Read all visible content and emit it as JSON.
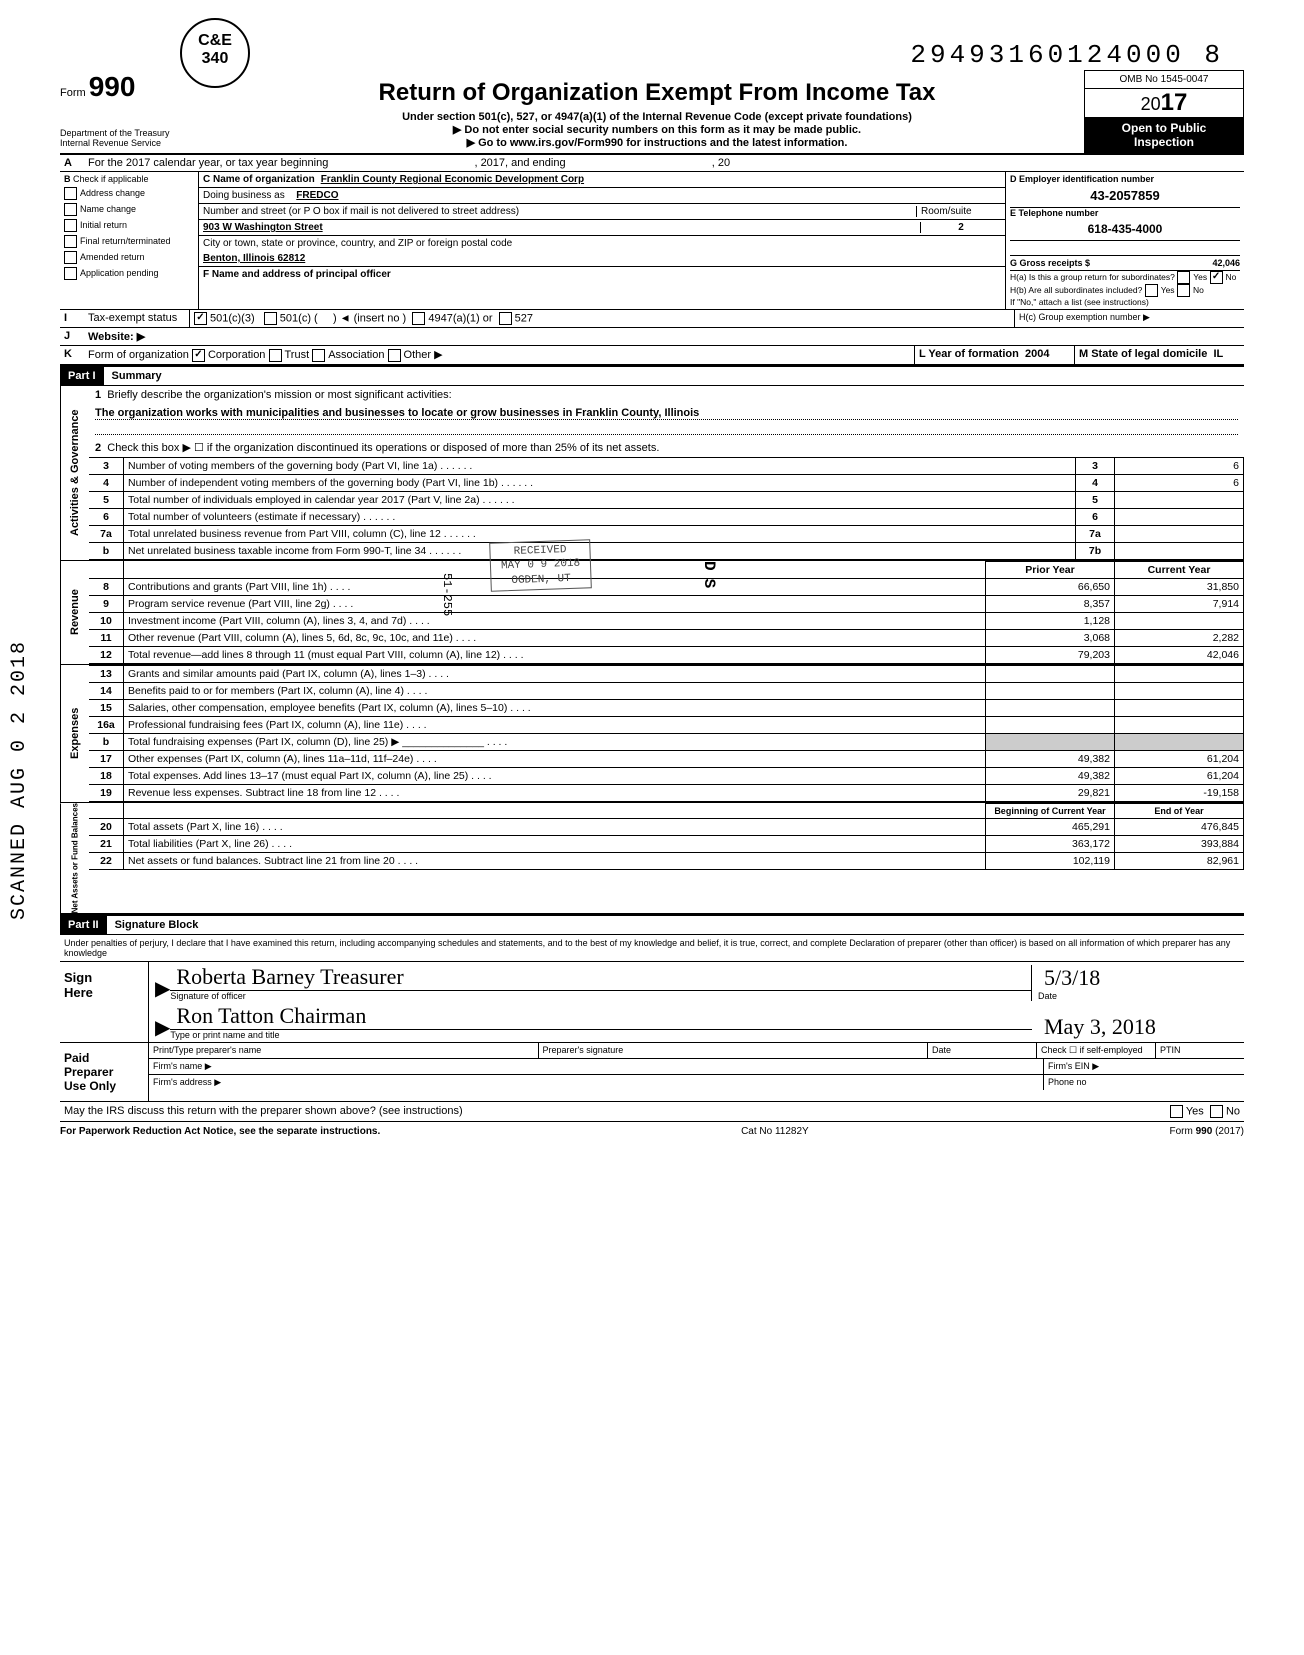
{
  "stamp": {
    "line1": "C&E",
    "line2": "340"
  },
  "dln": "29493160124000  8",
  "formNo": "990",
  "formWord": "Form",
  "title": "Return of Organization Exempt From Income Tax",
  "subtitle": "Under section 501(c), 527, or 4947(a)(1) of the Internal Revenue Code (except private foundations)",
  "warn1": "▶ Do not enter social security numbers on this form as it may be made public.",
  "warn2": "▶ Go to www.irs.gov/Form990 for instructions and the latest information.",
  "dept1": "Department of the Treasury",
  "dept2": "Internal Revenue Service",
  "omb": "OMB No  1545-0047",
  "year_prefix": "20",
  "year_big": "17",
  "open1": "Open to Public",
  "open2": "Inspection",
  "lineA": "For the 2017 calendar year, or tax year beginning",
  "lineA2": ", 2017, and ending",
  "lineA3": ", 20",
  "B": {
    "header": "Check if applicable",
    "items": [
      "Address change",
      "Name change",
      "Initial return",
      "Final return/terminated",
      "Amended return",
      "Application pending"
    ]
  },
  "C": {
    "name_lbl": "C Name of organization",
    "name_val": "Franklin County Regional Economic Development Corp",
    "dba_lbl": "Doing business as",
    "dba_val": "FREDCO",
    "street_lbl": "Number and street (or P O  box if mail is not delivered to street address)",
    "room_lbl": "Room/suite",
    "street_val": "903 W Washington Street",
    "room_val": "2",
    "city_lbl": "City or town, state or province, country, and ZIP or foreign postal code",
    "city_val": "Benton, Illinois 62812",
    "F_lbl": "F Name and address of principal officer"
  },
  "D": {
    "lbl": "D Employer identification number",
    "val": "43-2057859"
  },
  "E": {
    "lbl": "E Telephone number",
    "val": "618-435-4000"
  },
  "G": {
    "lbl": "G Gross receipts $",
    "val": "42,046"
  },
  "H": {
    "a": "H(a) Is this a group return for subordinates?",
    "b": "H(b) Are all subordinates included?",
    "yes": "Yes",
    "no": "No",
    "note": "If \"No,\" attach a list  (see instructions)",
    "c": "H(c) Group exemption number ▶"
  },
  "I": {
    "lbl": "Tax-exempt status",
    "opts": [
      "501(c)(3)",
      "501(c) (",
      "◄ (insert no )",
      "4947(a)(1) or",
      "527"
    ]
  },
  "J": {
    "lbl": "Website: ▶"
  },
  "K": {
    "lbl": "Form of organization",
    "opts": [
      "Corporation",
      "Trust",
      "Association",
      "Other ▶"
    ],
    "L": "L Year of formation",
    "L_val": "2004",
    "M": "M State of legal domicile",
    "M_val": "IL"
  },
  "part1": {
    "tag": "Part I",
    "title": "Summary"
  },
  "summary": {
    "q1": "Briefly describe the organization's mission or most significant activities:",
    "q1_val": "The organization works with municipalities and businesses to locate or grow businesses in Franklin County, Illinois",
    "q2": "Check this box ▶ ☐ if the organization discontinued its operations or disposed of more than 25% of its net assets.",
    "rows_top": [
      {
        "n": "3",
        "desc": "Number of voting members of the governing body (Part VI, line 1a)",
        "box": "3",
        "val": "6"
      },
      {
        "n": "4",
        "desc": "Number of independent voting members of the governing body (Part VI, line 1b)",
        "box": "4",
        "val": "6"
      },
      {
        "n": "5",
        "desc": "Total number of individuals employed in calendar year 2017 (Part V, line 2a)",
        "box": "5",
        "val": ""
      },
      {
        "n": "6",
        "desc": "Total number of volunteers (estimate if necessary)",
        "box": "6",
        "val": ""
      },
      {
        "n": "7a",
        "desc": "Total unrelated business revenue from Part VIII, column (C), line 12",
        "box": "7a",
        "val": ""
      },
      {
        "n": "b",
        "desc": "Net unrelated business taxable income from Form 990-T, line 34",
        "box": "7b",
        "val": ""
      }
    ],
    "col_prior": "Prior Year",
    "col_current": "Current Year",
    "revenue_rows": [
      {
        "n": "8",
        "desc": "Contributions and grants (Part VIII, line 1h)",
        "prior": "66,650",
        "curr": "31,850"
      },
      {
        "n": "9",
        "desc": "Program service revenue (Part VIII, line 2g)",
        "prior": "8,357",
        "curr": "7,914"
      },
      {
        "n": "10",
        "desc": "Investment income (Part VIII, column (A), lines 3, 4, and 7d)",
        "prior": "1,128",
        "curr": ""
      },
      {
        "n": "11",
        "desc": "Other revenue (Part VIII, column (A), lines 5, 6d, 8c, 9c, 10c, and 11e)",
        "prior": "3,068",
        "curr": "2,282"
      },
      {
        "n": "12",
        "desc": "Total revenue—add lines 8 through 11 (must equal Part VIII, column (A), line 12)",
        "prior": "79,203",
        "curr": "42,046"
      }
    ],
    "expense_rows": [
      {
        "n": "13",
        "desc": "Grants and similar amounts paid (Part IX, column (A), lines 1–3)",
        "prior": "",
        "curr": ""
      },
      {
        "n": "14",
        "desc": "Benefits paid to or for members (Part IX, column (A), line 4)",
        "prior": "",
        "curr": ""
      },
      {
        "n": "15",
        "desc": "Salaries, other compensation, employee benefits (Part IX, column (A), lines 5–10)",
        "prior": "",
        "curr": ""
      },
      {
        "n": "16a",
        "desc": "Professional fundraising fees (Part IX, column (A), line 11e)",
        "prior": "",
        "curr": ""
      },
      {
        "n": "b",
        "desc": "Total fundraising expenses (Part IX, column (D), line 25) ▶ ______________",
        "prior": "shade",
        "curr": "shade"
      },
      {
        "n": "17",
        "desc": "Other expenses (Part IX, column (A), lines 11a–11d, 11f–24e)",
        "prior": "49,382",
        "curr": "61,204"
      },
      {
        "n": "18",
        "desc": "Total expenses. Add lines 13–17 (must equal Part IX, column (A), line 25)",
        "prior": "49,382",
        "curr": "61,204"
      },
      {
        "n": "19",
        "desc": "Revenue less expenses. Subtract line 18 from line 12",
        "prior": "29,821",
        "curr": "-19,158"
      }
    ],
    "col_begin": "Beginning of Current Year",
    "col_end": "End of Year",
    "net_rows": [
      {
        "n": "20",
        "desc": "Total assets (Part X, line 16)",
        "prior": "465,291",
        "curr": "476,845"
      },
      {
        "n": "21",
        "desc": "Total liabilities (Part X, line 26)",
        "prior": "363,172",
        "curr": "393,884"
      },
      {
        "n": "22",
        "desc": "Net assets or fund balances. Subtract line 21 from line 20",
        "prior": "102,119",
        "curr": "82,961"
      }
    ]
  },
  "vert": {
    "gov": "Activities & Governance",
    "rev": "Revenue",
    "exp": "Expenses",
    "net": "Net Assets or\nFund Balances"
  },
  "part2": {
    "tag": "Part II",
    "title": "Signature Block"
  },
  "sig": {
    "perjury": "Under penalties of perjury, I declare that I have examined this return, including accompanying schedules and statements, and to the best of my knowledge  and belief, it is true, correct, and complete  Declaration of preparer (other than officer) is based on all information of which preparer has any knowledge",
    "sign": "Sign",
    "here": "Here",
    "sig_officer": "Signature of officer",
    "date_lbl": "Date",
    "type_name": "Type or print name and title",
    "hand_sig": "Roberta Barney    Treasurer",
    "hand_date": "5/3/18",
    "hand_name": "Ron Tatton    Chairman",
    "hand_date2": "May 3, 2018",
    "paid": "Paid",
    "preparer": "Preparer",
    "useonly": "Use Only",
    "prep_name": "Print/Type preparer's name",
    "prep_sig": "Preparer's signature",
    "prep_date": "Date",
    "check_if": "Check ☐ if self-employed",
    "ptin": "PTIN",
    "firm_name": "Firm's name    ▶",
    "firm_ein": "Firm's EIN ▶",
    "firm_addr": "Firm's address ▶",
    "phone": "Phone no",
    "discuss": "May the IRS discuss this return with the preparer shown above? (see instructions)",
    "yes": "Yes",
    "no": "No"
  },
  "footer": {
    "left": "For Paperwork Reduction Act Notice, see the separate instructions.",
    "mid": "Cat  No  11282Y",
    "right": "Form 990 (2017)"
  },
  "stamp_recv": {
    "l1": "RECEIVED",
    "l2": "MAY 0 9 2018",
    "l3": "OGDEN, UT"
  },
  "scanned": "SCANNED  AUG 0 2 2018",
  "stamp255": "51-255",
  "stampDS": "DS"
}
